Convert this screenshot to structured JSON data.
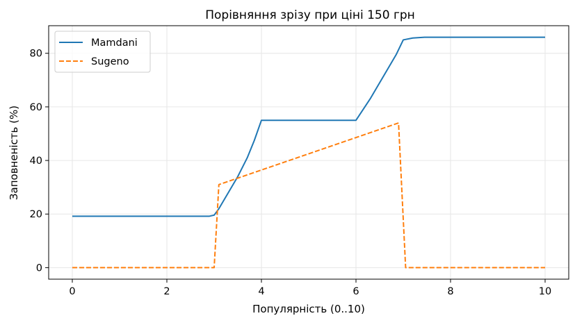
{
  "chart_data": {
    "type": "line",
    "title": "Порівняння зрізу при ціні 150 грн",
    "xlabel": "Популярність (0..10)",
    "ylabel": "Заповненість (%)",
    "xlim": [
      -0.5,
      10.5
    ],
    "ylim": [
      -4.3,
      90.3
    ],
    "xticks": [
      0,
      2,
      4,
      6,
      8,
      10
    ],
    "yticks": [
      0,
      20,
      40,
      60,
      80
    ],
    "grid": true,
    "legend_position": "top-left",
    "series": [
      {
        "name": "Mamdani",
        "color": "#1f77b4",
        "dash": "solid",
        "points": [
          [
            0,
            19.2
          ],
          [
            1,
            19.2
          ],
          [
            2,
            19.2
          ],
          [
            2.9,
            19.2
          ],
          [
            3.0,
            19.6
          ],
          [
            3.1,
            22.0
          ],
          [
            3.3,
            28.0
          ],
          [
            3.5,
            34.0
          ],
          [
            3.7,
            41.0
          ],
          [
            3.85,
            47.5
          ],
          [
            4.0,
            55.0
          ],
          [
            5.0,
            55.0
          ],
          [
            6.0,
            55.0
          ],
          [
            6.3,
            63.0
          ],
          [
            6.6,
            72.0
          ],
          [
            6.85,
            79.5
          ],
          [
            7.0,
            85.0
          ],
          [
            7.2,
            85.7
          ],
          [
            7.45,
            86.0
          ],
          [
            8,
            86.0
          ],
          [
            9,
            86.0
          ],
          [
            10,
            86.0
          ]
        ]
      },
      {
        "name": "Sugeno",
        "color": "#ff7f0e",
        "dash": "dashed",
        "points": [
          [
            0,
            0
          ],
          [
            3.0,
            0
          ],
          [
            3.1,
            31.0
          ],
          [
            6.9,
            54.0
          ],
          [
            7.05,
            0
          ],
          [
            10,
            0
          ]
        ]
      }
    ]
  }
}
